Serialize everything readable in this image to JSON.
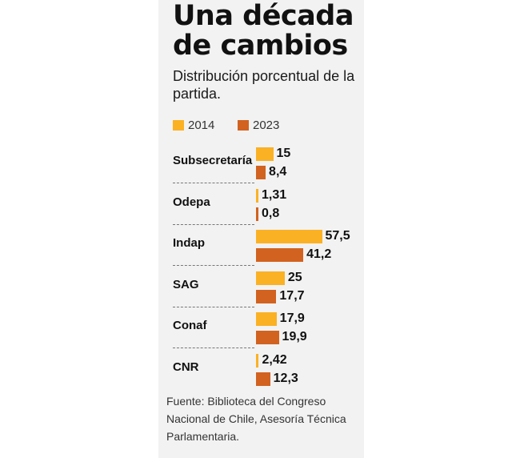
{
  "title": "Una década de cambios",
  "subtitle": "Distribución porcentual de la partida.",
  "source": "Fuente: Biblioteca del Congreso Nacional de Chile,  Asesoría Técnica Parlamentaria.",
  "chart_data": {
    "type": "bar",
    "orientation": "horizontal",
    "categories": [
      "Subsecretaría",
      "Odepa",
      "Indap",
      "SAG",
      "Conaf",
      "CNR"
    ],
    "series": [
      {
        "name": "2014",
        "color": "#fbb124",
        "values": [
          15,
          1.31,
          57.5,
          25,
          17.9,
          2.42
        ],
        "labels": [
          "15",
          "1,31",
          "57,5",
          "25",
          "17,9",
          "2,42"
        ]
      },
      {
        "name": "2023",
        "color": "#d2621f",
        "values": [
          8.4,
          0.8,
          41.2,
          17.7,
          19.9,
          12.3
        ],
        "labels": [
          "8,4",
          "0,8",
          "41,2",
          "17,7",
          "19,9",
          "12,3"
        ]
      }
    ],
    "legend_position": "top-left",
    "grid": false
  }
}
